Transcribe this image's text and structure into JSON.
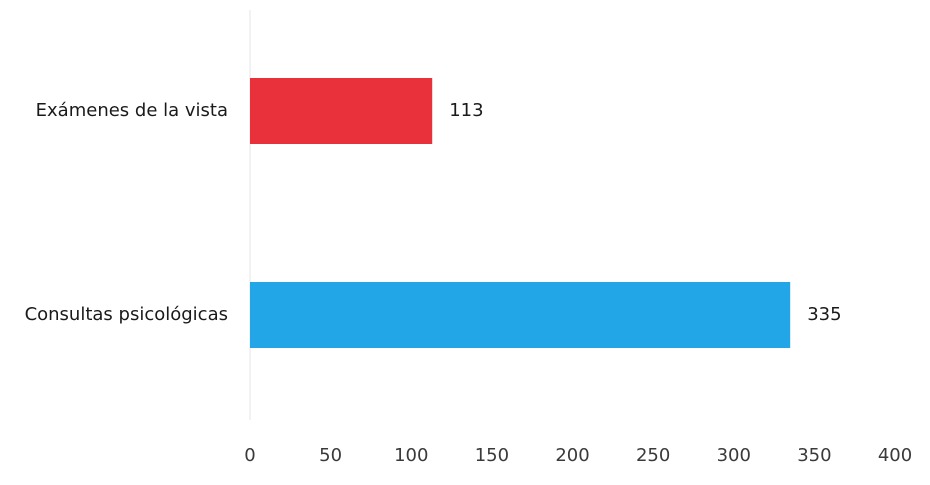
{
  "chart_data": {
    "type": "bar",
    "orientation": "horizontal",
    "categories": [
      "Exámenes de la vista",
      "Consultas psicológicas"
    ],
    "values": [
      113,
      335
    ],
    "data_labels": [
      "113",
      "335"
    ],
    "colors": [
      "#e8313a",
      "#22a6e8"
    ],
    "xlim": [
      0,
      400
    ],
    "x_ticks": [
      0,
      50,
      100,
      150,
      200,
      250,
      300,
      350,
      400
    ],
    "x_tick_labels": [
      "0",
      "50",
      "100",
      "150",
      "200",
      "250",
      "300",
      "350",
      "400"
    ],
    "grid": false,
    "legend": "none"
  }
}
